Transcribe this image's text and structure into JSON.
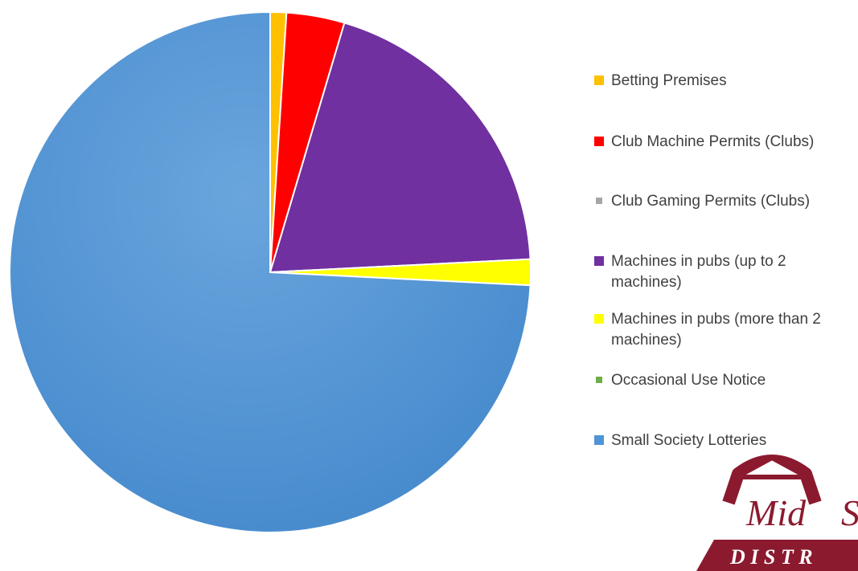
{
  "chart_data": {
    "type": "pie",
    "title": "",
    "start_angle_deg": 0,
    "direction": "clockwise",
    "slices": [
      {
        "label": "Betting Premises",
        "value": 1.0,
        "color": "#FFC000"
      },
      {
        "label": "Club Machine Permits (Clubs)",
        "value": 3.6,
        "color": "#FF0000"
      },
      {
        "label": "Club Gaming Permits (Clubs)",
        "value": 0.0,
        "color": "#A6A6A6"
      },
      {
        "label": "Machines in pubs (up to 2 machines)",
        "value": 19.6,
        "color": "#7030A0"
      },
      {
        "label": "Machines in pubs (more than 2 machines)",
        "value": 1.6,
        "color": "#FFFF00"
      },
      {
        "label": "Occasional Use Notice",
        "value": 0.0,
        "color": "#70AD47"
      },
      {
        "label": "Small Society Lotteries",
        "value": 74.2,
        "color": "#4E94D6"
      }
    ],
    "legend_position": "right"
  },
  "legend": {
    "items": [
      {
        "label": "Betting Premises",
        "color": "#FFC000"
      },
      {
        "label": "Club Machine Permits (Clubs)",
        "color": "#FF0000"
      },
      {
        "label": "Club Gaming Permits (Clubs)",
        "color": "#A6A6A6"
      },
      {
        "label": "Machines in pubs (up to 2 machines)",
        "color": "#7030A0"
      },
      {
        "label": "Machines in pubs (more than 2 machines)",
        "color": "#FFFF00"
      },
      {
        "label": "Occasional Use Notice",
        "color": "#70AD47"
      },
      {
        "label": "Small Society Lotteries",
        "color": "#4E94D6"
      }
    ]
  },
  "logo": {
    "text_main": "Mid",
    "text_second": "S",
    "text_bottom": "D I S T R",
    "color": "#8B1A2E"
  }
}
